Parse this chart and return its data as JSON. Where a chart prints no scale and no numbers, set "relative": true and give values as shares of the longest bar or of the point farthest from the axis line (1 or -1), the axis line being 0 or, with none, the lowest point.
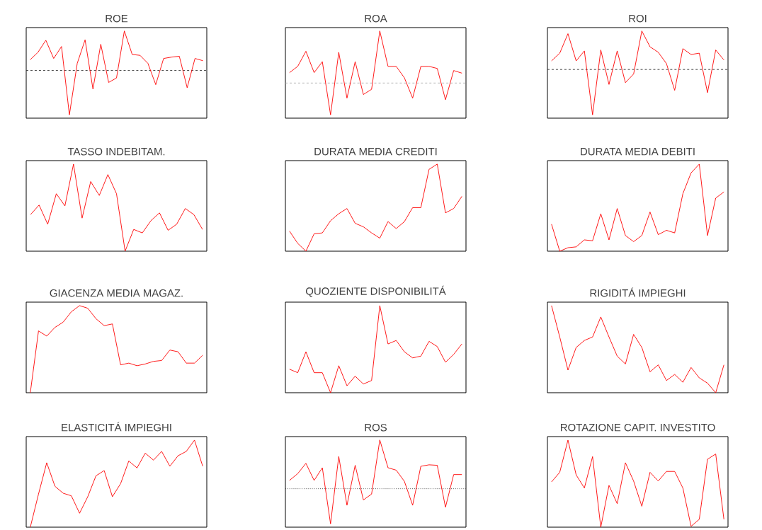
{
  "chart_data": [
    {
      "type": "line",
      "title": "ROE",
      "relative": true,
      "categories": [
        null,
        null,
        null,
        null,
        null,
        null,
        null,
        null,
        null,
        null,
        null,
        null,
        null,
        null,
        null,
        null,
        null,
        null,
        null,
        null,
        null,
        null,
        null
      ],
      "ref_lines": [
        {
          "axis": "y",
          "value": 0,
          "color": "#333333",
          "line_style": "dashed"
        }
      ],
      "series": [
        {
          "color": "#ff0000",
          "values": [
            0.24,
            0.41,
            0.68,
            0.27,
            0.54,
            -1.0,
            0.16,
            0.69,
            -0.42,
            0.59,
            -0.27,
            -0.17,
            0.89,
            0.36,
            0.34,
            0.16,
            -0.32,
            0.27,
            0.3,
            0.32,
            -0.39,
            0.27,
            0.22
          ]
        }
      ]
    },
    {
      "type": "line",
      "title": "ROA",
      "relative": true,
      "categories": [
        null,
        null,
        null,
        null,
        null,
        null,
        null,
        null,
        null,
        null,
        null,
        null,
        null,
        null,
        null,
        null,
        null,
        null,
        null,
        null,
        null,
        null
      ],
      "ref_lines": [
        {
          "axis": "y",
          "value": 0,
          "color": "#aaaaaa",
          "line_style": "dashed"
        }
      ],
      "series": [
        {
          "color": "#ff0000",
          "values": [
            0.2,
            0.32,
            0.61,
            0.2,
            0.41,
            -0.61,
            0.59,
            -0.29,
            0.41,
            -0.22,
            -0.12,
            1.0,
            0.32,
            0.32,
            0.1,
            -0.29,
            0.32,
            0.32,
            0.28,
            -0.32,
            0.24,
            0.19
          ]
        }
      ]
    },
    {
      "type": "line",
      "title": "ROI",
      "relative": true,
      "categories": [
        null,
        null,
        null,
        null,
        null,
        null,
        null,
        null,
        null,
        null,
        null,
        null,
        null,
        null,
        null,
        null,
        null,
        null,
        null,
        null,
        null,
        null
      ],
      "ref_lines": [
        {
          "axis": "y",
          "value": 0,
          "color": "#333333",
          "line_style": "dashed"
        }
      ],
      "series": [
        {
          "color": "#ff0000",
          "values": [
            0.19,
            0.36,
            0.79,
            0.19,
            0.41,
            -1.0,
            0.43,
            -0.33,
            0.41,
            -0.29,
            -0.1,
            0.85,
            0.5,
            0.38,
            0.13,
            -0.46,
            0.46,
            0.33,
            0.36,
            -0.51,
            0.43,
            0.21
          ]
        }
      ]
    },
    {
      "type": "line",
      "title": "TASSO INDEBITAM.",
      "relative": true,
      "categories": [
        null,
        null,
        null,
        null,
        null,
        null,
        null,
        null,
        null,
        null,
        null,
        null,
        null,
        null,
        null,
        null,
        null,
        null,
        null,
        null,
        null
      ],
      "series": [
        {
          "color": "#ff0000",
          "values": [
            0.42,
            0.53,
            0.31,
            0.66,
            0.52,
            1.0,
            0.38,
            0.8,
            0.64,
            0.88,
            0.66,
            0.0,
            0.25,
            0.21,
            0.35,
            0.44,
            0.24,
            0.31,
            0.49,
            0.42,
            0.25
          ]
        }
      ]
    },
    {
      "type": "line",
      "title": "DURATA MEDIA CREDITI",
      "relative": true,
      "categories": [
        null,
        null,
        null,
        null,
        null,
        null,
        null,
        null,
        null,
        null,
        null,
        null,
        null,
        null,
        null,
        null,
        null,
        null,
        null,
        null,
        null,
        null
      ],
      "series": [
        {
          "color": "#ff0000",
          "values": [
            0.23,
            0.09,
            0.0,
            0.2,
            0.21,
            0.35,
            0.43,
            0.49,
            0.32,
            0.28,
            0.21,
            0.15,
            0.34,
            0.26,
            0.34,
            0.5,
            0.5,
            0.94,
            1.0,
            0.44,
            0.49,
            0.63
          ]
        }
      ]
    },
    {
      "type": "line",
      "title": "DURATA MEDIA DEBITI",
      "relative": true,
      "categories": [
        null,
        null,
        null,
        null,
        null,
        null,
        null,
        null,
        null,
        null,
        null,
        null,
        null,
        null,
        null,
        null,
        null,
        null,
        null,
        null,
        null,
        null
      ],
      "series": [
        {
          "color": "#ff0000",
          "values": [
            0.31,
            0.0,
            0.04,
            0.05,
            0.13,
            0.12,
            0.43,
            0.13,
            0.49,
            0.18,
            0.11,
            0.18,
            0.45,
            0.19,
            0.24,
            0.21,
            0.66,
            0.9,
            1.0,
            0.18,
            0.61,
            0.68
          ]
        }
      ]
    },
    {
      "type": "line",
      "title": "GIACENZA MEDIA MAGAZ.",
      "relative": true,
      "categories": [
        null,
        null,
        null,
        null,
        null,
        null,
        null,
        null,
        null,
        null,
        null,
        null,
        null,
        null,
        null,
        null,
        null,
        null,
        null,
        null,
        null,
        null
      ],
      "series": [
        {
          "color": "#ff0000",
          "values": [
            0.0,
            0.71,
            0.65,
            0.75,
            0.81,
            0.93,
            1.0,
            0.97,
            0.85,
            0.77,
            0.79,
            0.32,
            0.34,
            0.31,
            0.33,
            0.36,
            0.37,
            0.49,
            0.47,
            0.34,
            0.34,
            0.43
          ]
        }
      ]
    },
    {
      "type": "line",
      "title": "QUOZIENTE DISPONIBILITÁ",
      "relative": true,
      "categories": [
        null,
        null,
        null,
        null,
        null,
        null,
        null,
        null,
        null,
        null,
        null,
        null,
        null,
        null,
        null,
        null,
        null,
        null,
        null,
        null,
        null,
        null
      ],
      "series": [
        {
          "color": "#ff0000",
          "values": [
            0.27,
            0.23,
            0.47,
            0.23,
            0.23,
            0.0,
            0.31,
            0.08,
            0.19,
            0.1,
            0.14,
            1.0,
            0.56,
            0.6,
            0.47,
            0.4,
            0.42,
            0.59,
            0.53,
            0.35,
            0.44,
            0.56
          ]
        }
      ]
    },
    {
      "type": "line",
      "title": "RIGIDITÁ IMPIEGHI",
      "relative": true,
      "categories": [
        null,
        null,
        null,
        null,
        null,
        null,
        null,
        null,
        null,
        null,
        null,
        null,
        null,
        null,
        null,
        null,
        null,
        null,
        null,
        null,
        null,
        null
      ],
      "series": [
        {
          "color": "#ff0000",
          "values": [
            1.0,
            0.64,
            0.26,
            0.52,
            0.6,
            0.64,
            0.87,
            0.64,
            0.42,
            0.33,
            0.67,
            0.52,
            0.24,
            0.32,
            0.14,
            0.21,
            0.12,
            0.29,
            0.17,
            0.11,
            0.0,
            0.32
          ]
        }
      ]
    },
    {
      "type": "line",
      "title": "ELASTICITÁ IMPIEGHI",
      "relative": true,
      "categories": [
        null,
        null,
        null,
        null,
        null,
        null,
        null,
        null,
        null,
        null,
        null,
        null,
        null,
        null,
        null,
        null,
        null,
        null,
        null,
        null,
        null,
        null
      ],
      "series": [
        {
          "color": "#ff0000",
          "values": [
            0.0,
            0.38,
            0.74,
            0.47,
            0.39,
            0.36,
            0.16,
            0.35,
            0.59,
            0.65,
            0.35,
            0.5,
            0.76,
            0.68,
            0.85,
            0.77,
            0.87,
            0.7,
            0.82,
            0.87,
            1.0,
            0.7
          ]
        }
      ]
    },
    {
      "type": "line",
      "title": "ROS",
      "relative": true,
      "categories": [
        null,
        null,
        null,
        null,
        null,
        null,
        null,
        null,
        null,
        null,
        null,
        null,
        null,
        null,
        null,
        null,
        null,
        null,
        null,
        null,
        null,
        null
      ],
      "ref_lines": [
        {
          "axis": "y",
          "value": 0,
          "color": "#333333",
          "line_style": "dotted"
        }
      ],
      "series": [
        {
          "color": "#ff0000",
          "values": [
            0.17,
            0.31,
            0.52,
            0.17,
            0.43,
            -0.72,
            0.66,
            -0.34,
            0.48,
            -0.23,
            -0.11,
            1.0,
            0.43,
            0.38,
            0.15,
            -0.34,
            0.46,
            0.49,
            0.48,
            -0.38,
            0.29,
            0.29
          ]
        }
      ]
    },
    {
      "type": "line",
      "title": "ROTAZIONE CAPIT. INVESTITO",
      "relative": true,
      "categories": [
        null,
        null,
        null,
        null,
        null,
        null,
        null,
        null,
        null,
        null,
        null,
        null,
        null,
        null,
        null,
        null,
        null,
        null,
        null,
        null,
        null,
        null
      ],
      "series": [
        {
          "color": "#ff0000",
          "values": [
            0.52,
            0.63,
            1.0,
            0.6,
            0.45,
            0.81,
            0.0,
            0.48,
            0.27,
            0.74,
            0.53,
            0.24,
            0.63,
            0.53,
            0.64,
            0.64,
            0.45,
            0.01,
            0.09,
            0.78,
            0.84,
            0.09
          ]
        }
      ]
    }
  ]
}
